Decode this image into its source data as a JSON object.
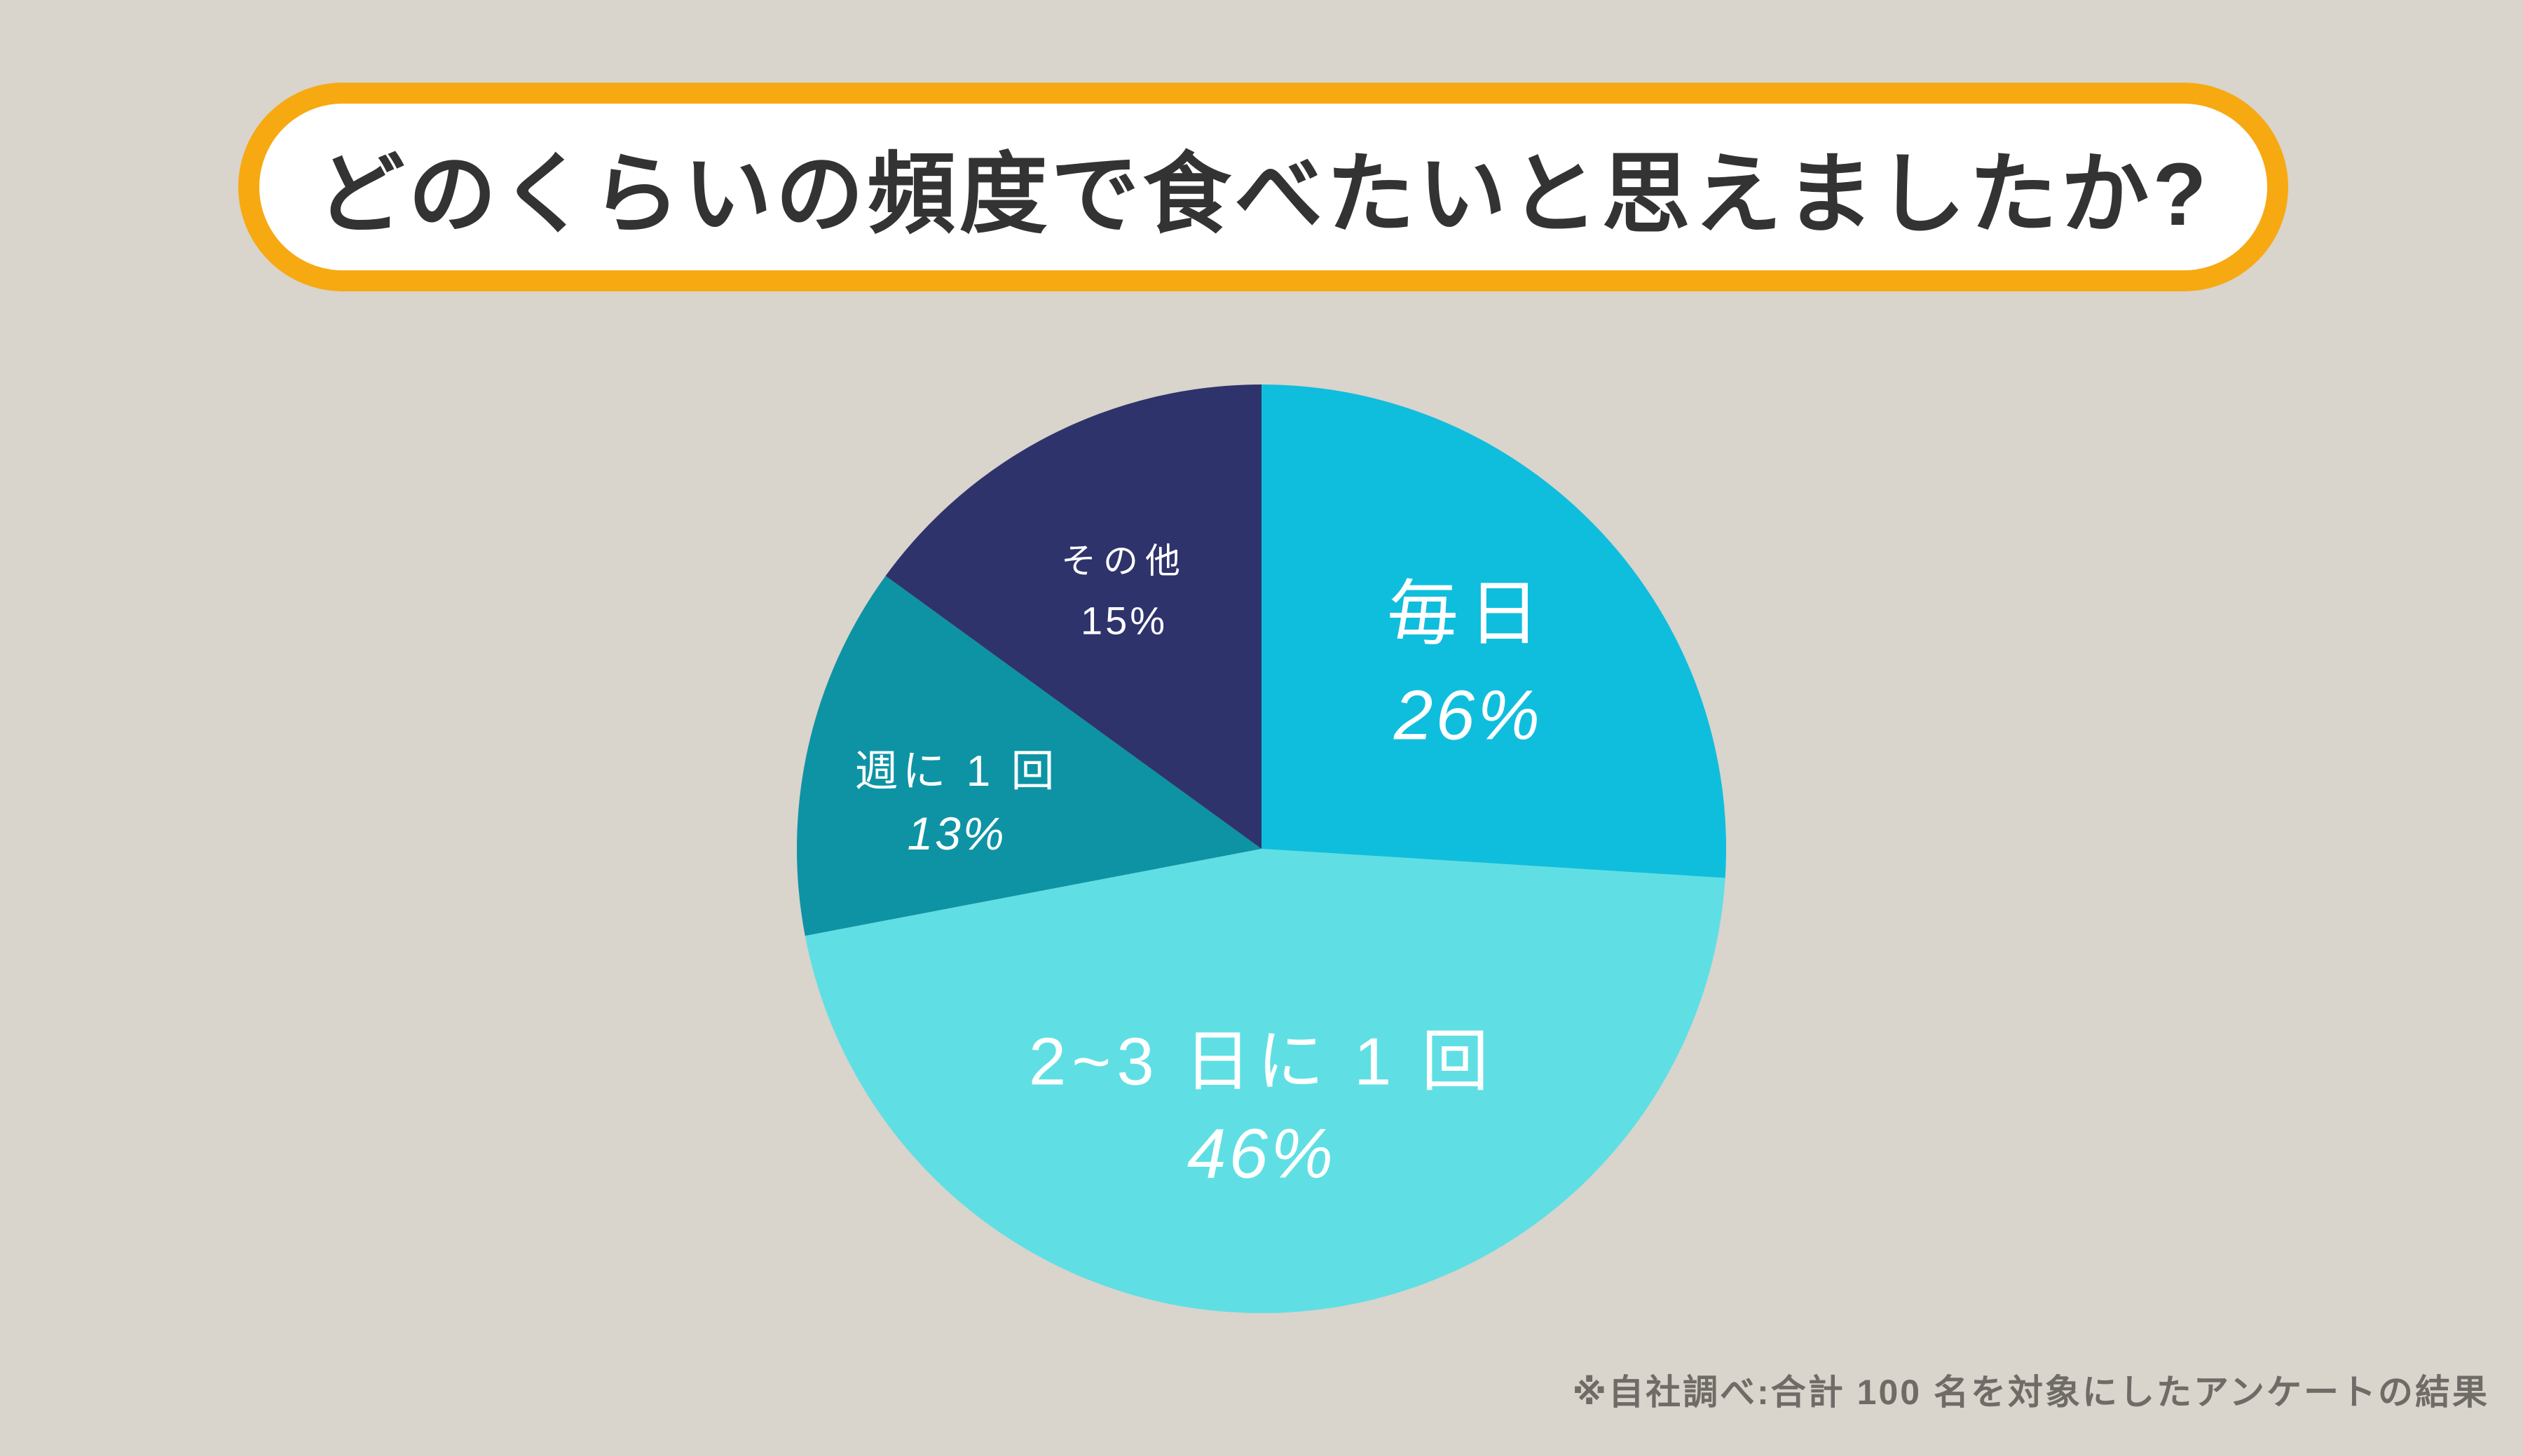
{
  "canvas": {
    "background_color": "#d9d4cc"
  },
  "title": {
    "text": "どのくらいの頻度で食べたいと思えましたか?",
    "box_fill": "#ffffff",
    "border_color": "#f7a912",
    "text_color": "#333333"
  },
  "footnote": {
    "text": "※自社調べ:合計 100 名を対象にしたアンケートの結果",
    "color": "#6f6b66"
  },
  "chart_data": {
    "type": "pie",
    "title": "どのくらいの頻度で食べたいと思えましたか?",
    "unit": "%",
    "total_respondents": 100,
    "start_position": "top",
    "direction": "clockwise",
    "legend": "none",
    "labels_inside": true,
    "label_color": "#ffffff",
    "categories": [
      "毎日",
      "2~3 日に 1 回",
      "週に 1 回",
      "その他"
    ],
    "values": [
      26,
      46,
      13,
      15
    ],
    "slices": [
      {
        "label": "毎日",
        "value": 26,
        "percent_label": "26%",
        "color": "#0fbedd"
      },
      {
        "label": "2~3 日に 1 回",
        "value": 46,
        "percent_label": "46%",
        "color": "#5fdfe4"
      },
      {
        "label": "週に 1 回",
        "value": 13,
        "percent_label": "13%",
        "color": "#0e93a4"
      },
      {
        "label": "その他",
        "value": 15,
        "percent_label": "15%",
        "color": "#2e336b"
      }
    ]
  }
}
